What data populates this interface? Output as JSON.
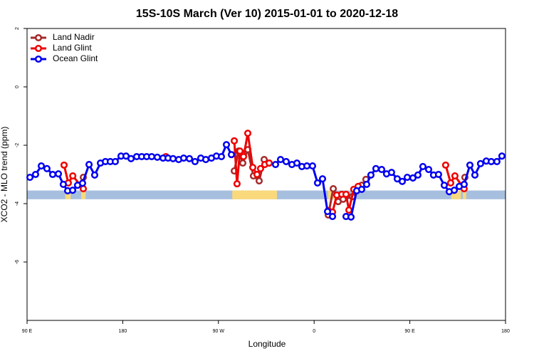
{
  "chart_data": {
    "type": "line",
    "title": "15S-10S March (Ver 10)   2015-01-01 to 2020-12-18",
    "xlabel": "Longitude",
    "ylabel": "XCO2 - MLO trend (ppm)",
    "xlim": [
      90,
      540
    ],
    "ylim": [
      -8,
      2
    ],
    "xticks": [
      {
        "value": 90,
        "label": "90 E"
      },
      {
        "value": 180,
        "label": "180"
      },
      {
        "value": 270,
        "label": "90 W"
      },
      {
        "value": 360,
        "label": "0"
      },
      {
        "value": 450,
        "label": "90 E"
      },
      {
        "value": 540,
        "label": "180"
      }
    ],
    "yticks": [
      -6,
      -4,
      -2,
      0,
      2
    ],
    "legend": "top-left",
    "land_mask": {
      "ymin": -3.85,
      "ymax": -3.55,
      "ocean_color": "#a7bfdf",
      "land_color": "#f9d97c",
      "land_ranges": [
        [
          126,
          131
        ],
        [
          141,
          145
        ],
        [
          283,
          325
        ],
        [
          373,
          380
        ],
        [
          489,
          498
        ],
        [
          500,
          503
        ]
      ]
    },
    "series": [
      {
        "name": "Land Nadir",
        "color": "#a52a2a",
        "x": [
          142.9,
          200,
          284.9,
          288.9,
          292.9,
          297.6,
          302.9,
          308.3,
          313,
          317.7,
          340,
          373.3,
          378,
          382.6,
          387.3,
          396,
          404.7,
          408.7,
          450,
          501.8
        ],
        "values": [
          -3.1,
          null,
          -2.88,
          -2.2,
          -2.61,
          -2.15,
          -3.05,
          -3.22,
          -2.49,
          -2.61,
          null,
          -4.39,
          -3.49,
          -3.93,
          -3.85,
          -3.76,
          -3.37,
          -3.17,
          null,
          -3.1
        ]
      },
      {
        "name": "Land Glint",
        "color": "#ee0000",
        "x": [
          124.8,
          128.8,
          133,
          142.9,
          180,
          220.6,
          250,
          284.9,
          287.5,
          290.2,
          293.6,
          297.6,
          302.3,
          306.3,
          309.6,
          313.6,
          317.7,
          340,
          373.3,
          377.3,
          381.3,
          386,
          390,
          392.7,
          397.3,
          401.4,
          450,
          483.7,
          488.4,
          492.4,
          501.1
        ],
        "values": [
          -2.68,
          -3.29,
          -3.05,
          -3.49,
          null,
          -2.39,
          null,
          -1.85,
          -3.32,
          -2.2,
          -2.39,
          -1.59,
          -2.76,
          -3.0,
          -2.8,
          -2.66,
          -2.61,
          null,
          -4.24,
          -4.29,
          -3.71,
          -3.68,
          -3.68,
          -4.22,
          -3.51,
          -3.41,
          null,
          -2.68,
          -3.29,
          -3.05,
          -3.49
        ]
      },
      {
        "name": "Ocean Glint",
        "color": "#0000ee",
        "x": [
          92.7,
          98,
          103.4,
          108.7,
          114.1,
          119.5,
          124.1,
          128.2,
          132.9,
          137.5,
          142.2,
          148.3,
          153.6,
          159,
          163.7,
          168.3,
          173,
          178.4,
          183.1,
          187.8,
          193.1,
          197.8,
          202.5,
          207.2,
          212.5,
          217.9,
          222.6,
          227.3,
          232.6,
          237.3,
          242.7,
          248,
          253.4,
          258.1,
          263.4,
          268.1,
          272.8,
          277.5,
          282.2,
          300,
          323.7,
          328.4,
          333.7,
          339.1,
          343.8,
          348.5,
          353.2,
          358.5,
          363.2,
          367.9,
          372.6,
          377.3,
          383,
          390,
          394.7,
          400,
          404.7,
          409.4,
          413.4,
          418.1,
          423.5,
          428.1,
          432.8,
          438.2,
          442.9,
          447.6,
          452.9,
          457.6,
          462.3,
          467.7,
          472.3,
          477,
          482.4,
          487.1,
          491.8,
          496.5,
          501.1,
          506.5,
          511.2,
          516.5,
          521.9,
          526.6,
          531.9,
          536.6
        ],
        "values": [
          -3.1,
          -3.0,
          -2.71,
          -2.8,
          -3.0,
          -2.98,
          -3.34,
          -3.56,
          -3.54,
          -3.37,
          -3.3,
          -2.66,
          -3.02,
          -2.61,
          -2.56,
          -2.56,
          -2.56,
          -2.37,
          -2.37,
          -2.46,
          -2.39,
          -2.39,
          -2.39,
          -2.39,
          -2.41,
          -2.44,
          -2.44,
          -2.46,
          -2.49,
          -2.44,
          -2.46,
          -2.56,
          -2.44,
          -2.49,
          -2.44,
          -2.37,
          -2.39,
          -1.98,
          -2.32,
          null,
          -2.66,
          -2.49,
          -2.56,
          -2.66,
          -2.61,
          -2.73,
          -2.71,
          -2.71,
          -3.29,
          -3.15,
          -4.27,
          -4.44,
          null,
          -4.44,
          -4.46,
          -3.56,
          -3.51,
          -3.34,
          -3.02,
          -2.8,
          -2.83,
          -2.98,
          -2.93,
          -3.15,
          -3.24,
          -3.1,
          -3.12,
          -3.02,
          -2.73,
          -2.83,
          -3.02,
          -3.0,
          -3.37,
          -3.59,
          -3.54,
          -3.41,
          -3.34,
          -2.68,
          -3.02,
          -2.63,
          -2.54,
          -2.56,
          -2.56,
          -2.37
        ]
      }
    ]
  }
}
